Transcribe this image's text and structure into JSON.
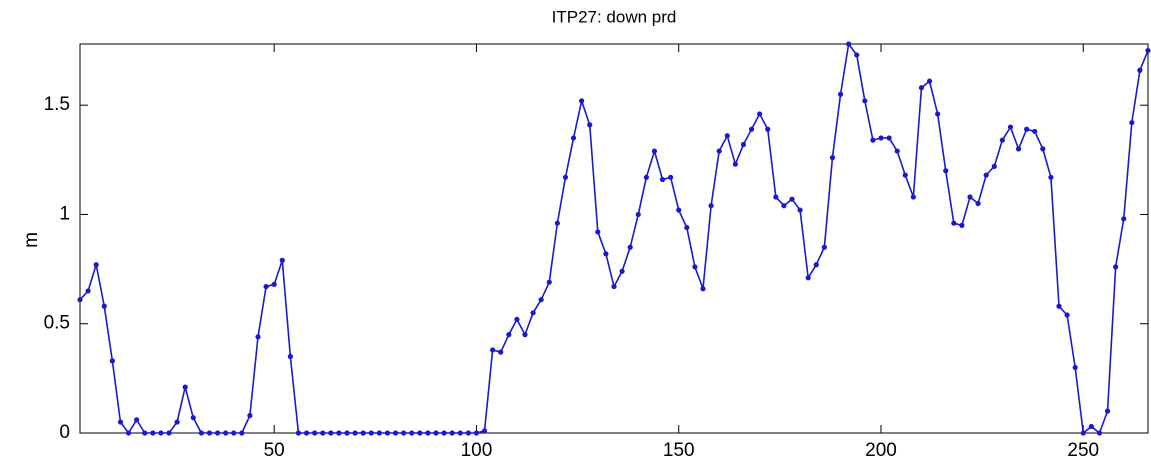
{
  "chart_data": {
    "type": "line",
    "title": "ITP27: down prd",
    "y_label": "m",
    "x": [
      2,
      4,
      6,
      8,
      10,
      12,
      14,
      16,
      18,
      20,
      22,
      24,
      26,
      28,
      30,
      32,
      34,
      36,
      38,
      40,
      42,
      44,
      46,
      48,
      50,
      52,
      54,
      56,
      58,
      60,
      62,
      64,
      66,
      68,
      70,
      72,
      74,
      76,
      78,
      80,
      82,
      84,
      86,
      88,
      90,
      92,
      94,
      96,
      98,
      100,
      102,
      104,
      106,
      108,
      110,
      112,
      114,
      116,
      118,
      120,
      122,
      124,
      126,
      128,
      130,
      132,
      134,
      136,
      138,
      140,
      142,
      144,
      146,
      148,
      150,
      152,
      154,
      156,
      158,
      160,
      162,
      164,
      166,
      168,
      170,
      172,
      174,
      176,
      178,
      180,
      182,
      184,
      186,
      188,
      190,
      192,
      194,
      196,
      198,
      200,
      202,
      204,
      206,
      208,
      210,
      212,
      214,
      216,
      218,
      220,
      222,
      224,
      226,
      228,
      230,
      232,
      234,
      236,
      238,
      240,
      242,
      244,
      246,
      248,
      250,
      252,
      254,
      256,
      258,
      260,
      262,
      264,
      266
    ],
    "series": [
      {
        "name": "down prd",
        "color": "#1a1acc",
        "values": [
          0.61,
          0.65,
          0.77,
          0.58,
          0.33,
          0.05,
          0,
          0.06,
          0,
          0,
          0,
          0,
          0.05,
          0.21,
          0.07,
          0,
          0,
          0,
          0,
          0,
          0,
          0.08,
          0.44,
          0.67,
          0.68,
          0.79,
          0.35,
          0,
          0,
          0,
          0,
          0,
          0,
          0,
          0,
          0,
          0,
          0,
          0,
          0,
          0,
          0,
          0,
          0,
          0,
          0,
          0,
          0,
          0,
          0,
          0.01,
          0.38,
          0.37,
          0.45,
          0.52,
          0.45,
          0.55,
          0.61,
          0.69,
          0.96,
          1.17,
          1.35,
          1.52,
          1.41,
          0.92,
          0.82,
          0.67,
          0.74,
          0.85,
          1.0,
          1.17,
          1.29,
          1.16,
          1.17,
          1.02,
          0.94,
          0.76,
          0.66,
          1.04,
          1.29,
          1.36,
          1.23,
          1.32,
          1.39,
          1.46,
          1.39,
          1.08,
          1.04,
          1.07,
          1.02,
          0.71,
          0.77,
          0.85,
          1.26,
          1.55,
          1.78,
          1.73,
          1.52,
          1.34,
          1.35,
          1.35,
          1.29,
          1.18,
          1.08,
          1.58,
          1.61,
          1.46,
          1.2,
          0.96,
          0.95,
          1.08,
          1.05,
          1.18,
          1.22,
          1.34,
          1.4,
          1.3,
          1.39,
          1.38,
          1.3,
          1.17,
          0.58,
          0.54,
          0.3,
          0,
          0.03,
          0,
          0.1,
          0.76,
          0.98,
          1.42,
          1.66,
          1.75
        ]
      }
    ],
    "xlim": [
      2,
      266
    ],
    "xticks": [
      50,
      100,
      150,
      200,
      250
    ],
    "ylim": [
      0,
      1.78
    ],
    "yticks": [
      0,
      0.5,
      1,
      1.5
    ],
    "grid": false
  }
}
